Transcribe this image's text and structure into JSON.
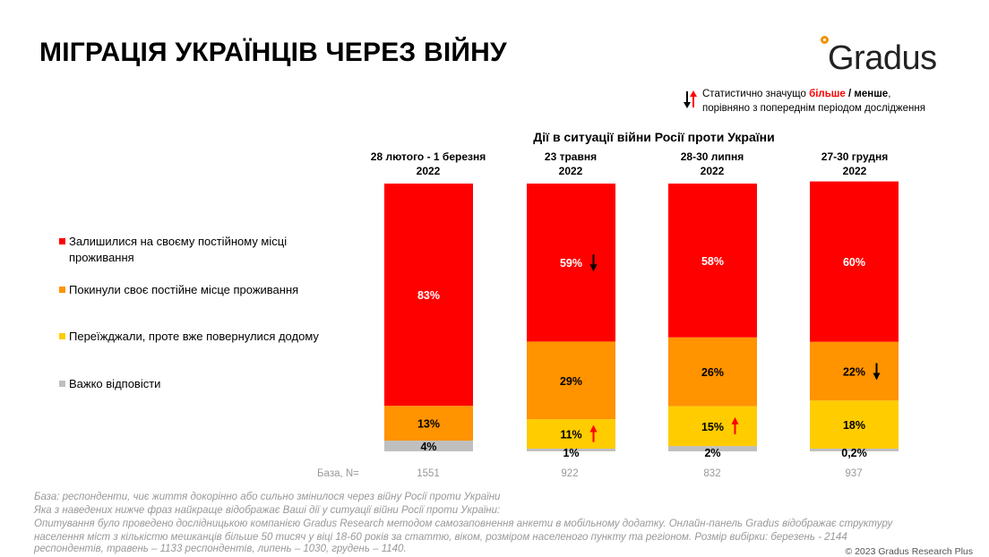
{
  "page": {
    "title": "МІГРАЦІЯ УКРАЇНЦІВ ЧЕРЕЗ ВІЙНУ",
    "logo": "Gradus",
    "significance_note": {
      "line1_prefix": "Статистично значущо ",
      "more": "більше",
      "separator": " / ",
      "less": "менше",
      "line1_suffix": ",",
      "line2": "порівняно з попереднім періодом дослідження"
    },
    "base_label": "База, N=",
    "footnotes": [
      "База: респонденти, чиє життя докорінно або сильно змінилося через війну Росії проти України",
      "Яка з наведених нижче фраз найкраще відображає Ваші дії у ситуації війни Росії проти України:",
      "Опитування було проведено дослідницькою компанією Gradus Research методом самозаповнення анкети в мобільному додатку. Онлайн-панель Gradus відображає структуру",
      "населення міст з кількістю мешканців більше 50 тисяч у віці 18-60 років за статтю, віком, розміром населеного пункту та регіоном. Розмір вибірки: березень - 2144",
      "респондентів, травень – 1133 респондентів, липень – 1030, грудень – 1140."
    ],
    "copyright": "© 2023 Gradus Research Plus"
  },
  "chart_data": {
    "type": "bar",
    "stacked": true,
    "normalized_to": 100,
    "title": "Дії в ситуації війни Росії проти України",
    "categories": [
      [
        "28 лютого - 1 березня",
        "2022"
      ],
      [
        "23 травня",
        "2022"
      ],
      [
        "28-30 липня",
        "2022"
      ],
      [
        "27-30 грудня",
        "2022"
      ]
    ],
    "base_n": [
      "1551",
      "922",
      "832",
      "937"
    ],
    "legend_position": "left",
    "series": [
      {
        "name": "Залишилися на своєму постійному місці проживання",
        "color": "#ff0000",
        "values": [
          83,
          59,
          58,
          60
        ],
        "labels": [
          "83%",
          "59%",
          "58%",
          "60%"
        ],
        "label_color": "#ffffff",
        "significance": [
          null,
          "down",
          null,
          null
        ]
      },
      {
        "name": "Покинули своє постійне місце проживання",
        "color": "#ff9300",
        "values": [
          13,
          29,
          26,
          22
        ],
        "labels": [
          "13%",
          "29%",
          "26%",
          "22%"
        ],
        "label_color": "#000000",
        "significance": [
          null,
          null,
          null,
          "down"
        ]
      },
      {
        "name": "Переїжджали, проте вже повернулися додому",
        "color": "#ffcc00",
        "values": [
          0,
          11,
          15,
          18
        ],
        "labels": [
          "",
          "11%",
          "15%",
          "18%"
        ],
        "label_color": "#000000",
        "significance": [
          null,
          "up",
          "up",
          null
        ]
      },
      {
        "name": "Важко відповісти",
        "color": "#bfbfbf",
        "values": [
          4,
          1,
          2,
          0.2
        ],
        "labels": [
          "4%",
          "1%",
          "2%",
          "0,2%"
        ],
        "label_color": "#000000",
        "significance": [
          null,
          null,
          null,
          null
        ]
      }
    ],
    "significance_colors": {
      "up": "#ff0000",
      "down": "#000000"
    }
  }
}
